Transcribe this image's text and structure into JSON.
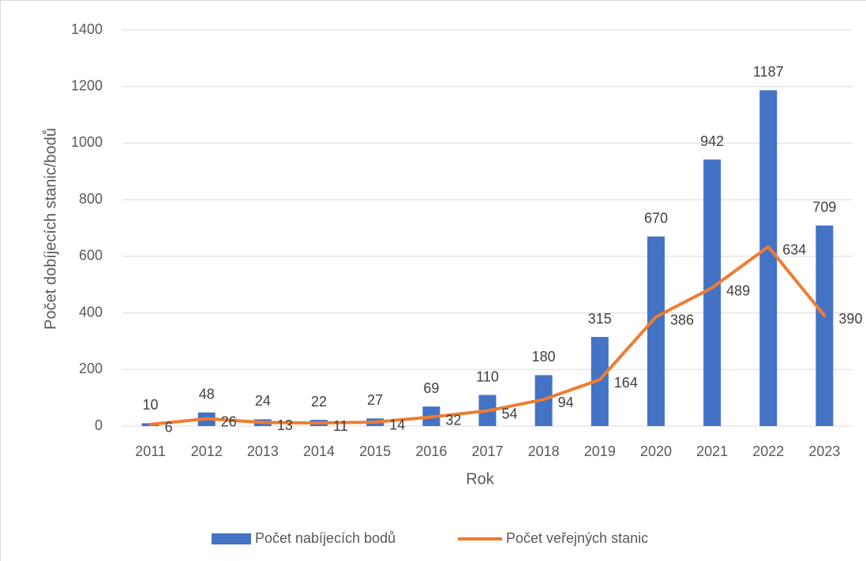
{
  "chart_data": {
    "type": "bar",
    "xlabel": "Rok",
    "ylabel": "Počet dobíjecích stanic/bodů",
    "categories": [
      "2011",
      "2012",
      "2013",
      "2014",
      "2015",
      "2016",
      "2017",
      "2018",
      "2019",
      "2020",
      "2021",
      "2022",
      "2023"
    ],
    "series": [
      {
        "name": "Počet nabíjecích bodů",
        "color": "#4472c4",
        "kind": "bar",
        "values": [
          10,
          48,
          24,
          22,
          27,
          69,
          110,
          180,
          315,
          670,
          942,
          1187,
          709
        ]
      },
      {
        "name": "Počet veřejných stanic",
        "color": "#ed7d31",
        "kind": "line",
        "values": [
          6,
          26,
          13,
          11,
          14,
          32,
          54,
          94,
          164,
          386,
          489,
          634,
          390
        ]
      }
    ],
    "ylim": [
      0,
      1400
    ],
    "yticks": [
      0,
      200,
      400,
      600,
      800,
      1000,
      1200,
      1400
    ],
    "grid": true,
    "legend": "bottom"
  }
}
